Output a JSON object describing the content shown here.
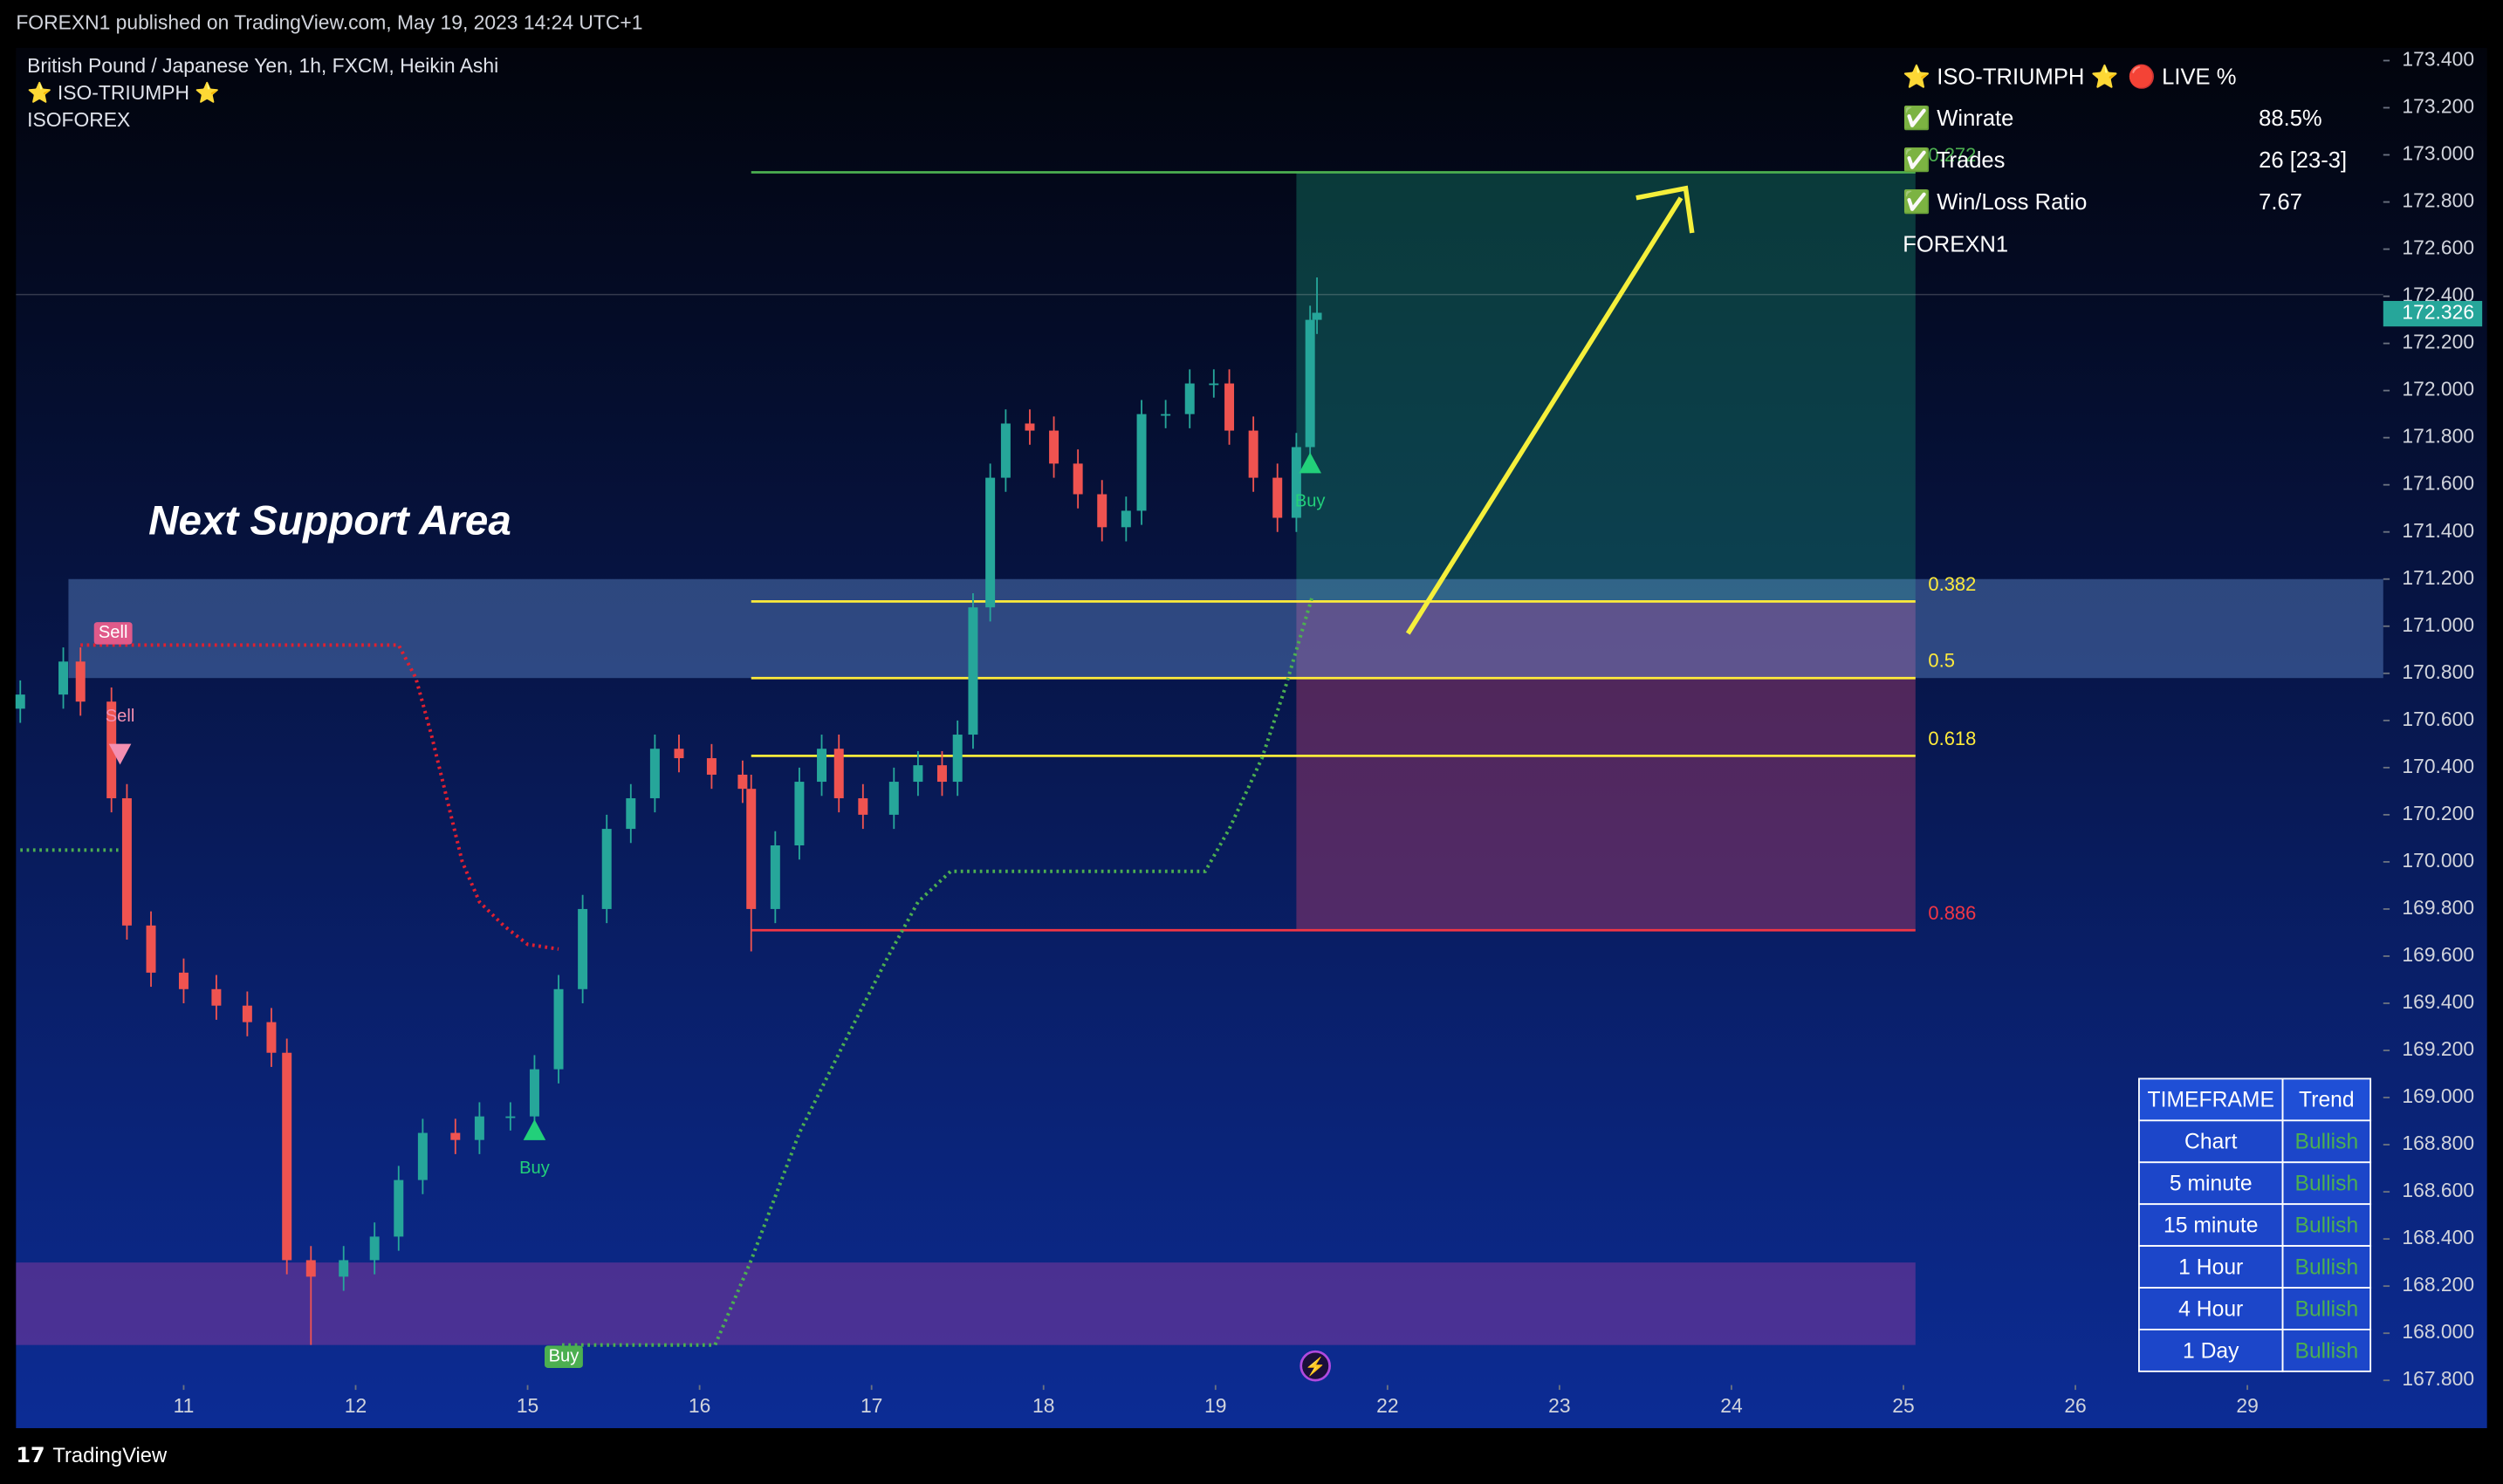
{
  "header": {
    "publisher": "FOREXN1 published on TradingView.com, May 19, 2023 14:24 UTC+1"
  },
  "chart_data": {
    "type": "candlestick",
    "title": "British Pound / Japanese Yen, 1h, FXCM, Heikin Ashi",
    "indicators": [
      "⭐ ISO-TRIUMPH ⭐",
      "ISOFOREX"
    ],
    "annotation": "Next Support Area",
    "up_color": "#26a69a",
    "down_color": "#ef5350",
    "xlim": [
      -0.975,
      12.79
    ],
    "xticks": [
      {
        "value": 0,
        "label": "11"
      },
      {
        "value": 1,
        "label": "12"
      },
      {
        "value": 2,
        "label": "15"
      },
      {
        "value": 3,
        "label": "16"
      },
      {
        "value": 4,
        "label": "17"
      },
      {
        "value": 5,
        "label": "18"
      },
      {
        "value": 6,
        "label": "19"
      },
      {
        "value": 7,
        "label": "22"
      },
      {
        "value": 8,
        "label": "23"
      },
      {
        "value": 9,
        "label": "24"
      },
      {
        "value": 10,
        "label": "25"
      },
      {
        "value": 11,
        "label": "26"
      },
      {
        "value": 12,
        "label": "29"
      }
    ],
    "ylim": [
      167.78,
      173.454
    ],
    "yticks": [
      {
        "value": 173.4,
        "label": "173.400"
      },
      {
        "value": 173.2,
        "label": "173.200"
      },
      {
        "value": 173,
        "label": "173.000"
      },
      {
        "value": 172.8,
        "label": "172.800"
      },
      {
        "value": 172.6,
        "label": "172.600"
      },
      {
        "value": 172.4,
        "label": "172.400"
      },
      {
        "value": 172.2,
        "label": "172.200"
      },
      {
        "value": 172,
        "label": "172.000"
      },
      {
        "value": 171.8,
        "label": "171.800"
      },
      {
        "value": 171.6,
        "label": "171.600"
      },
      {
        "value": 171.4,
        "label": "171.400"
      },
      {
        "value": 171.2,
        "label": "171.200"
      },
      {
        "value": 171,
        "label": "171.000"
      },
      {
        "value": 170.8,
        "label": "170.800"
      },
      {
        "value": 170.6,
        "label": "170.600"
      },
      {
        "value": 170.4,
        "label": "170.400"
      },
      {
        "value": 170.2,
        "label": "170.200"
      },
      {
        "value": 170,
        "label": "170.000"
      },
      {
        "value": 169.8,
        "label": "169.800"
      },
      {
        "value": 169.6,
        "label": "169.600"
      },
      {
        "value": 169.4,
        "label": "169.400"
      },
      {
        "value": 169.2,
        "label": "169.200"
      },
      {
        "value": 169,
        "label": "169.000"
      },
      {
        "value": 168.8,
        "label": "168.800"
      },
      {
        "value": 168.6,
        "label": "168.600"
      },
      {
        "value": 168.4,
        "label": "168.400"
      },
      {
        "value": 168.2,
        "label": "168.200"
      },
      {
        "value": 168,
        "label": "168.000"
      },
      {
        "value": 167.8,
        "label": "167.800"
      }
    ],
    "last_price": {
      "value": 172.326,
      "label": "172.326"
    },
    "candles": {
      "x": [
        -0.95,
        -0.7,
        -0.6,
        -0.42,
        -0.33,
        -0.19,
        0,
        0.19,
        0.37,
        0.51,
        0.6,
        0.74,
        0.93,
        1.11,
        1.25,
        1.39,
        1.58,
        1.72,
        1.9,
        2.04,
        2.18,
        2.32,
        2.46,
        2.6,
        2.74,
        2.88,
        3.07,
        3.25,
        3.3,
        3.44,
        3.58,
        3.71,
        3.81,
        3.95,
        4.13,
        4.27,
        4.41,
        4.5,
        4.59,
        4.69,
        4.78,
        4.92,
        5.06,
        5.2,
        5.34,
        5.48,
        5.57,
        5.71,
        5.85,
        5.99,
        6.08,
        6.22,
        6.36,
        6.47,
        6.55,
        6.59
      ],
      "open": [
        170.65,
        170.71,
        170.85,
        170.68,
        170.27,
        169.73,
        169.53,
        169.46,
        169.39,
        169.32,
        169.19,
        168.31,
        168.24,
        168.31,
        168.41,
        168.65,
        168.85,
        168.82,
        168.92,
        168.92,
        169.12,
        169.46,
        169.8,
        170.14,
        170.27,
        170.48,
        170.44,
        170.37,
        170.31,
        169.8,
        170.07,
        170.34,
        170.48,
        170.27,
        170.2,
        170.34,
        170.41,
        170.34,
        170.54,
        171.08,
        171.63,
        171.86,
        171.83,
        171.69,
        171.56,
        171.42,
        171.49,
        171.9,
        171.9,
        172.03,
        172.03,
        171.83,
        171.63,
        171.46,
        171.76,
        172.3
      ],
      "high": [
        170.77,
        170.91,
        170.91,
        170.74,
        170.33,
        169.79,
        169.59,
        169.52,
        169.45,
        169.38,
        169.25,
        168.37,
        168.37,
        168.47,
        168.71,
        168.91,
        168.91,
        168.98,
        168.98,
        169.18,
        169.52,
        169.86,
        170.2,
        170.33,
        170.54,
        170.54,
        170.5,
        170.43,
        170.37,
        170.13,
        170.4,
        170.54,
        170.54,
        170.33,
        170.4,
        170.47,
        170.47,
        170.6,
        171.14,
        171.69,
        171.92,
        171.92,
        171.89,
        171.75,
        171.62,
        171.55,
        171.96,
        171.96,
        172.09,
        172.09,
        172.09,
        171.89,
        171.69,
        171.82,
        172.36,
        172.48
      ],
      "low": [
        170.59,
        170.65,
        170.62,
        170.21,
        169.67,
        169.47,
        169.4,
        169.33,
        169.26,
        169.13,
        168.25,
        167.95,
        168.18,
        168.25,
        168.35,
        168.59,
        168.76,
        168.76,
        168.86,
        168.86,
        169.06,
        169.4,
        169.74,
        170.08,
        170.21,
        170.38,
        170.31,
        170.25,
        169.62,
        169.74,
        170.01,
        170.28,
        170.21,
        170.14,
        170.14,
        170.28,
        170.28,
        170.28,
        170.48,
        171.02,
        171.57,
        171.77,
        171.63,
        171.5,
        171.36,
        171.36,
        171.43,
        171.84,
        171.84,
        171.97,
        171.77,
        171.57,
        171.4,
        171.4,
        171.7,
        172.24
      ],
      "close": [
        170.71,
        170.85,
        170.68,
        170.27,
        169.73,
        169.53,
        169.46,
        169.39,
        169.32,
        169.19,
        168.31,
        168.24,
        168.31,
        168.41,
        168.65,
        168.85,
        168.82,
        168.92,
        168.92,
        169.12,
        169.46,
        169.8,
        170.14,
        170.27,
        170.48,
        170.44,
        170.37,
        170.31,
        169.8,
        170.07,
        170.34,
        170.48,
        170.27,
        170.2,
        170.34,
        170.41,
        170.34,
        170.54,
        171.08,
        171.63,
        171.86,
        171.83,
        171.69,
        171.56,
        171.42,
        171.49,
        171.9,
        171.9,
        172.03,
        172.03,
        171.83,
        171.63,
        171.46,
        171.76,
        172.3,
        172.33
      ]
    },
    "zones": [
      {
        "from": 170.78,
        "to": 171.2,
        "x": [
          -0.67,
          12.79
        ],
        "color": "rgba(120,170,240,0.35)"
      },
      {
        "from": 167.95,
        "to": 168.3,
        "x": [
          -0.975,
          10.07
        ],
        "color": "rgba(150,60,160,0.45)"
      }
    ],
    "trade_box": {
      "x": [
        6.47,
        10.07
      ],
      "target": 172.926,
      "entry": 171.105,
      "stop": 169.71
    },
    "fib_range": [
      3.3,
      10.07
    ],
    "fib_levels": [
      {
        "value": 172.926,
        "label": "0.272",
        "color": "#4caf50"
      },
      {
        "value": 171.105,
        "label": "0.382",
        "color": "#ffeb3b"
      },
      {
        "value": 170.78,
        "label": "0.5",
        "color": "#ffeb3b"
      },
      {
        "value": 170.45,
        "label": "0.618",
        "color": "#ffeb3b"
      },
      {
        "value": 169.71,
        "label": "0.886",
        "color": "#f23645"
      }
    ],
    "trailing_stops": [
      {
        "color": "#e02030",
        "x": [
          -0.6,
          1.25,
          1.35,
          1.44,
          1.53,
          1.62,
          1.72,
          1.86,
          2.0,
          2.18
        ],
        "values": [
          170.92,
          170.92,
          170.78,
          170.54,
          170.27,
          170.0,
          169.83,
          169.73,
          169.65,
          169.63
        ]
      },
      {
        "color": "#4caf50",
        "x": [
          -0.95,
          -0.38
        ],
        "values": [
          170.05,
          170.05
        ]
      },
      {
        "color": "#4caf50",
        "x": [
          2.2,
          3.09,
          3.3,
          3.58,
          3.86,
          4.09,
          4.27,
          4.46,
          5.94,
          6.08,
          6.27,
          6.41,
          6.56
        ],
        "values": [
          167.95,
          167.95,
          168.31,
          168.85,
          169.26,
          169.59,
          169.83,
          169.96,
          169.96,
          170.14,
          170.44,
          170.75,
          171.12
        ]
      }
    ],
    "signals": [
      {
        "label": "Sell",
        "style": "tag",
        "x": -0.41,
        "value": 170.97
      },
      {
        "label": "Sell",
        "style": "arrow",
        "x": -0.37,
        "value": 170.46
      },
      {
        "label": "Buy",
        "style": "arrow",
        "x": 2.04,
        "value": 168.86
      },
      {
        "label": "Buy",
        "style": "tag",
        "x": 2.21,
        "value": 167.9
      },
      {
        "label": "Buy",
        "style": "arrow",
        "x": 6.55,
        "value": 171.69
      }
    ]
  },
  "stats_panel": {
    "title": "⭐ ISO-TRIUMPH ⭐",
    "status": "🔴 LIVE %",
    "rows": [
      [
        "✅ Winrate",
        "88.5%"
      ],
      [
        "✅ Trades",
        "26 [23-3]"
      ],
      [
        "✅ Win/Loss Ratio",
        "7.67"
      ]
    ],
    "author": "FOREXN1"
  },
  "trend_table": {
    "header": [
      "TIMEFRAME",
      "Trend"
    ],
    "rows": [
      [
        "Chart",
        "Bullish"
      ],
      [
        "5 minute",
        "Bullish"
      ],
      [
        "15 minute",
        "Bullish"
      ],
      [
        "1 Hour",
        "Bullish"
      ],
      [
        "4 Hour",
        "Bullish"
      ],
      [
        "1 Day",
        "Bullish"
      ]
    ]
  },
  "footer": {
    "brand": "TradingView"
  }
}
